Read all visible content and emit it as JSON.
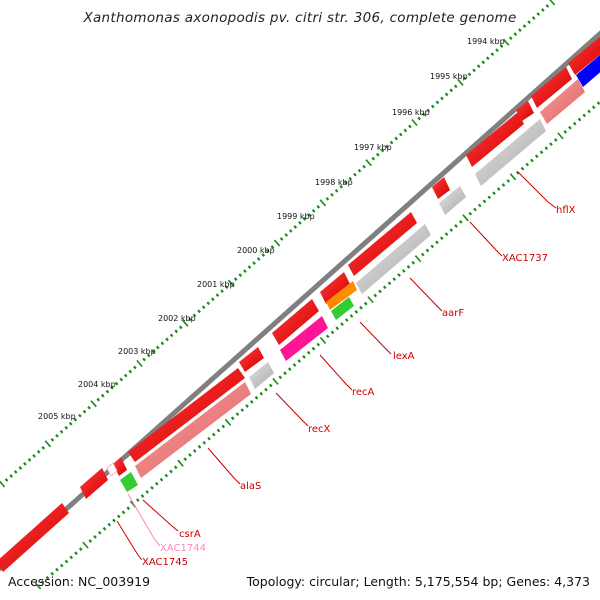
{
  "title": "Xanthomonas axonopodis pv. citri str. 306, complete genome",
  "footer": {
    "accession": "Accession: NC_003919",
    "summary": "Topology: circular; Length: 5,175,554 bp; Genes: 4,373"
  },
  "colors": {
    "backbone": "#808080",
    "cds_forward": "#ff0000",
    "cds_reverse": "#f08080",
    "gray_feature": "#c8c8c8",
    "magenta_feature": "#ff1493",
    "orange_feature": "#ff8c00",
    "green_feature": "#33cc33",
    "blue_feature": "#0000ff",
    "tick_marks": "#1a8a1a",
    "label_line": "#cc0000"
  },
  "scale_labels": [
    "1994 kbp",
    "1995 kbp",
    "1996 kbp",
    "1997 kbp",
    "1998 kbp",
    "1999 kbp",
    "2000 kbp",
    "2001 kbp",
    "2002 kbp",
    "2003 kbp",
    "2004 kbp",
    "2005 kbp"
  ],
  "gene_labels": [
    {
      "name": "hflX",
      "color": "#cc0000"
    },
    {
      "name": "XAC1737",
      "color": "#cc0000"
    },
    {
      "name": "aarF",
      "color": "#cc0000"
    },
    {
      "name": "lexA",
      "color": "#cc0000"
    },
    {
      "name": "recA",
      "color": "#cc0000"
    },
    {
      "name": "recX",
      "color": "#cc0000"
    },
    {
      "name": "alaS",
      "color": "#cc0000"
    },
    {
      "name": "csrA",
      "color": "#cc0000"
    },
    {
      "name": "XAC1744",
      "color": "#ff88bb"
    },
    {
      "name": "XAC1745",
      "color": "#cc0000"
    }
  ]
}
